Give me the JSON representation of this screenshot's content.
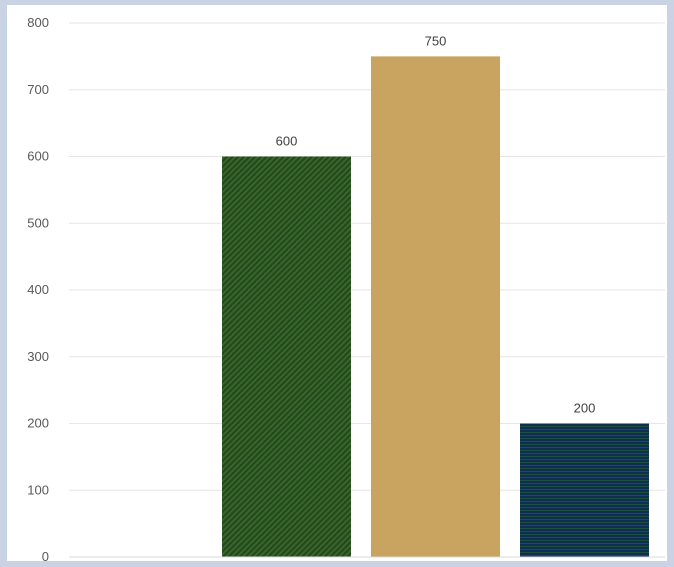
{
  "chart_data": {
    "type": "bar",
    "categories": [
      "",
      "",
      ""
    ],
    "values": [
      600,
      750,
      200
    ],
    "data_labels": [
      "600",
      "750",
      "200"
    ],
    "colors": [
      "#234a1e",
      "#c9a461",
      "#0f2f52"
    ],
    "patterns": [
      "diagonal-stripes",
      "solid",
      "horizontal-stripes"
    ],
    "ylim": [
      0,
      800
    ],
    "y_ticks": [
      "0",
      "100",
      "200",
      "300",
      "400",
      "500",
      "600",
      "700",
      "800"
    ],
    "grid": true,
    "legend": "none"
  }
}
